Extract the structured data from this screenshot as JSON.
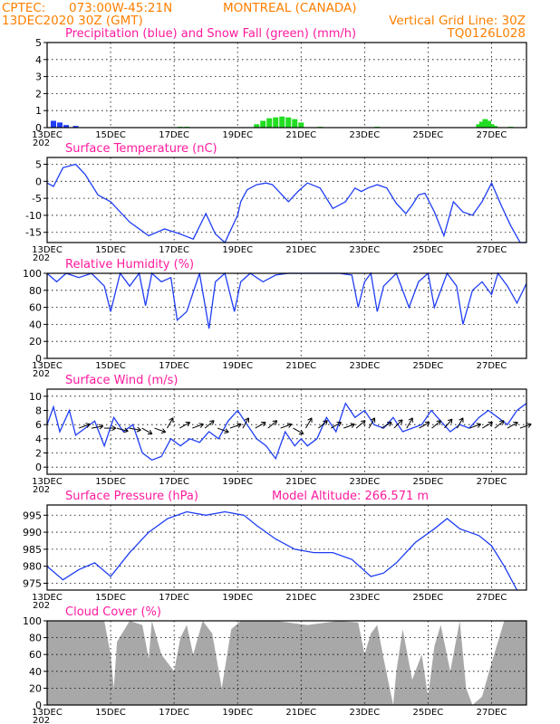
{
  "header": {
    "source": "CPTEC:",
    "location_coords": "073:00W-45:21N",
    "location_name": "MONTREAL (CANADA)",
    "run_time": "13DEC2020 30Z (GMT)",
    "grid_note": "Vertical Grid Line: 30Z",
    "model_code": "TQ0126L028"
  },
  "colors": {
    "header_text": "#ff7f00",
    "panel_title": "#ff1a9e",
    "line": "#1f3df5",
    "precip": "#1f3df5",
    "snow": "#22dd22",
    "cloud": "#a8a8a8"
  },
  "chart_data": [
    {
      "id": "precip",
      "type": "bar",
      "title": "Precipitation (blue) and Snow Fall (green) (mm/h)",
      "x_ticks": [
        "13DEC",
        "15DEC",
        "17DEC",
        "19DEC",
        "21DEC",
        "23DEC",
        "25DEC",
        "27DEC"
      ],
      "x_start_label": "202",
      "ylim": [
        0,
        5
      ],
      "y_ticks": [
        0,
        1,
        2,
        3,
        4,
        5
      ],
      "grid": true,
      "series": [
        {
          "name": "Precipitation",
          "color": "#1f3df5",
          "x": [
            0.1,
            0.2,
            0.3,
            0.45
          ],
          "values": [
            0.4,
            0.3,
            0.15,
            0.1
          ]
        },
        {
          "name": "Snow Fall",
          "color": "#22dd22",
          "x": [
            2.1,
            2.2,
            3.3,
            3.4,
            3.5,
            3.6,
            3.7,
            3.8,
            3.9,
            4.0,
            4.3,
            5.2,
            6.8,
            6.85,
            6.9,
            6.95,
            7.0,
            7.05,
            7.3
          ],
          "values": [
            0.05,
            0.05,
            0.2,
            0.4,
            0.55,
            0.6,
            0.65,
            0.6,
            0.5,
            0.3,
            0.05,
            0.05,
            0.2,
            0.35,
            0.5,
            0.4,
            0.2,
            0.1,
            0.05
          ]
        }
      ]
    },
    {
      "id": "temperature",
      "type": "line",
      "title": "Surface Temperature (nC)",
      "x_ticks": [
        "13DEC",
        "15DEC",
        "17DEC",
        "19DEC",
        "21DEC",
        "23DEC",
        "25DEC",
        "27DEC"
      ],
      "x_start_label": "202",
      "ylim": [
        -18,
        7
      ],
      "y_ticks": [
        -15,
        -10,
        -5,
        0,
        5
      ],
      "grid": true,
      "x": [
        0,
        0.1,
        0.25,
        0.45,
        0.6,
        0.8,
        1.0,
        1.3,
        1.6,
        1.85,
        2.1,
        2.3,
        2.5,
        2.65,
        2.8,
        3.0,
        3.05,
        3.15,
        3.3,
        3.45,
        3.55,
        3.8,
        3.95,
        4.1,
        4.3,
        4.5,
        4.7,
        4.85,
        4.95,
        5.05,
        5.2,
        5.35,
        5.5,
        5.65,
        5.75,
        5.85,
        5.95,
        6.1,
        6.25,
        6.4,
        6.55,
        6.7,
        6.85,
        7.0,
        7.15,
        7.3,
        7.45,
        7.55
      ],
      "values": [
        -0.5,
        -1.5,
        4,
        5,
        2,
        -4,
        -6,
        -12,
        -16,
        -14,
        -15.5,
        -17,
        -9.5,
        -15.5,
        -18,
        -10,
        -6,
        -2.5,
        -1,
        -0.5,
        -1,
        -6,
        -3,
        -0.5,
        -2,
        -8,
        -6,
        -2,
        -3,
        -2,
        -1,
        -2,
        -6.5,
        -9.5,
        -7,
        -4,
        -3.5,
        -9,
        -16,
        -6,
        -9,
        -10,
        -6,
        -0.5,
        -7,
        -13,
        -18,
        -18
      ]
    },
    {
      "id": "humidity",
      "type": "line",
      "title": "Relative Humidity (%)",
      "x_ticks": [
        "13DEC",
        "15DEC",
        "17DEC",
        "19DEC",
        "21DEC",
        "23DEC",
        "25DEC",
        "27DEC"
      ],
      "x_start_label": "202",
      "ylim": [
        0,
        100
      ],
      "y_ticks": [
        0,
        20,
        40,
        60,
        80,
        100
      ],
      "grid": true,
      "x": [
        0,
        0.15,
        0.3,
        0.5,
        0.7,
        0.9,
        1.0,
        1.15,
        1.3,
        1.45,
        1.55,
        1.65,
        1.8,
        1.95,
        2.05,
        2.2,
        2.4,
        2.55,
        2.65,
        2.8,
        2.95,
        3.05,
        3.2,
        3.4,
        3.6,
        3.8,
        4.0,
        4.2,
        4.4,
        4.6,
        4.8,
        4.9,
        5.0,
        5.1,
        5.2,
        5.3,
        5.5,
        5.7,
        5.85,
        6.0,
        6.1,
        6.3,
        6.45,
        6.55,
        6.7,
        6.85,
        7.0,
        7.1,
        7.25,
        7.4,
        7.55
      ],
      "values": [
        100,
        90,
        100,
        95,
        100,
        85,
        55,
        100,
        85,
        100,
        62,
        100,
        90,
        95,
        45,
        55,
        100,
        35,
        90,
        100,
        55,
        90,
        100,
        90,
        98,
        100,
        100,
        100,
        100,
        100,
        98,
        60,
        90,
        100,
        55,
        85,
        100,
        60,
        90,
        100,
        60,
        100,
        85,
        40,
        80,
        90,
        75,
        100,
        85,
        65,
        88
      ]
    },
    {
      "id": "wind",
      "type": "line",
      "title": "Surface Wind (m/s)",
      "x_ticks": [
        "13DEC",
        "15DEC",
        "17DEC",
        "19DEC",
        "21DEC",
        "23DEC",
        "25DEC",
        "27DEC"
      ],
      "x_start_label": "202",
      "ylim": [
        -1,
        11
      ],
      "y_ticks": [
        0,
        2,
        4,
        6,
        8,
        10
      ],
      "grid": true,
      "x": [
        0,
        0.1,
        0.2,
        0.35,
        0.45,
        0.6,
        0.75,
        0.9,
        1.05,
        1.2,
        1.35,
        1.5,
        1.65,
        1.8,
        1.95,
        2.1,
        2.25,
        2.4,
        2.55,
        2.7,
        2.85,
        3.0,
        3.15,
        3.3,
        3.45,
        3.6,
        3.75,
        3.9,
        4.0,
        4.1,
        4.25,
        4.4,
        4.55,
        4.7,
        4.85,
        5.0,
        5.15,
        5.3,
        5.45,
        5.6,
        5.75,
        5.9,
        6.05,
        6.2,
        6.35,
        6.5,
        6.65,
        6.8,
        6.95,
        7.1,
        7.25,
        7.4,
        7.55
      ],
      "values": [
        6,
        8.5,
        5,
        8,
        4.5,
        5.5,
        6.5,
        3,
        7,
        5,
        6,
        2,
        1,
        1.5,
        4,
        3,
        4,
        3.5,
        5,
        4,
        6.5,
        8,
        6,
        4,
        3,
        1.2,
        5,
        3,
        4,
        3,
        4,
        7,
        5,
        9,
        7,
        8,
        6,
        5.5,
        7,
        5,
        5.5,
        6,
        8,
        6.5,
        5,
        6,
        5.5,
        7,
        8,
        7,
        6,
        8,
        9
      ]
    },
    {
      "id": "pressure",
      "type": "line",
      "title": "Surface Pressure (hPa)",
      "subtitle": "Model Altitude: 266.571 m",
      "x_ticks": [
        "13DEC",
        "15DEC",
        "17DEC",
        "19DEC",
        "21DEC",
        "23DEC",
        "25DEC",
        "27DEC"
      ],
      "x_start_label": "202",
      "ylim": [
        973,
        998
      ],
      "y_ticks": [
        975,
        980,
        985,
        990,
        995
      ],
      "grid": true,
      "x": [
        0,
        0.25,
        0.5,
        0.75,
        1.0,
        1.3,
        1.6,
        1.9,
        2.2,
        2.5,
        2.8,
        3.1,
        3.3,
        3.6,
        3.9,
        4.2,
        4.5,
        4.8,
        5.1,
        5.3,
        5.5,
        5.8,
        6.1,
        6.3,
        6.5,
        6.8,
        7.0,
        7.2,
        7.4
      ],
      "values": [
        980,
        976,
        979,
        981,
        977,
        984,
        990,
        994,
        996,
        995,
        996,
        995,
        992,
        988,
        985,
        984,
        984,
        982,
        977,
        978,
        981,
        987,
        991,
        994,
        991,
        989,
        986,
        980,
        973
      ]
    },
    {
      "id": "cloud",
      "type": "area",
      "title": "Cloud Cover (%)",
      "x_ticks": [
        "13DEC",
        "15DEC",
        "17DEC",
        "19DEC",
        "21DEC",
        "23DEC",
        "25DEC",
        "27DEC"
      ],
      "x_start_label": "202",
      "ylim": [
        0,
        100
      ],
      "y_ticks": [
        0,
        20,
        40,
        60,
        80,
        100
      ],
      "grid": true,
      "x": [
        0,
        0.9,
        1.0,
        1.05,
        1.1,
        1.3,
        1.5,
        1.6,
        1.65,
        1.8,
        2.0,
        2.1,
        2.2,
        2.3,
        2.45,
        2.6,
        2.75,
        2.9,
        3.05,
        3.2,
        3.6,
        4.1,
        4.6,
        4.9,
        5.0,
        5.1,
        5.2,
        5.3,
        5.45,
        5.5,
        5.6,
        5.75,
        5.9,
        6.0,
        6.1,
        6.2,
        6.35,
        6.5,
        6.6,
        6.7,
        6.85,
        7.0,
        7.2,
        7.4,
        7.55
      ],
      "values": [
        100,
        100,
        60,
        20,
        75,
        100,
        95,
        55,
        100,
        60,
        40,
        80,
        95,
        60,
        100,
        85,
        20,
        90,
        100,
        100,
        100,
        95,
        100,
        98,
        60,
        85,
        95,
        55,
        0,
        40,
        90,
        30,
        60,
        10,
        70,
        95,
        40,
        100,
        20,
        0,
        10,
        50,
        100,
        100,
        100
      ]
    }
  ],
  "wind_arrow_dirs_deg": [
    20,
    10,
    0,
    -15,
    -10,
    -30,
    -20,
    60,
    30,
    20,
    40,
    -20,
    20,
    60,
    30,
    40,
    20,
    -30,
    60,
    40,
    30,
    20,
    40,
    60,
    30,
    45,
    60,
    30,
    40,
    50,
    60,
    20,
    30,
    40,
    30,
    20
  ]
}
